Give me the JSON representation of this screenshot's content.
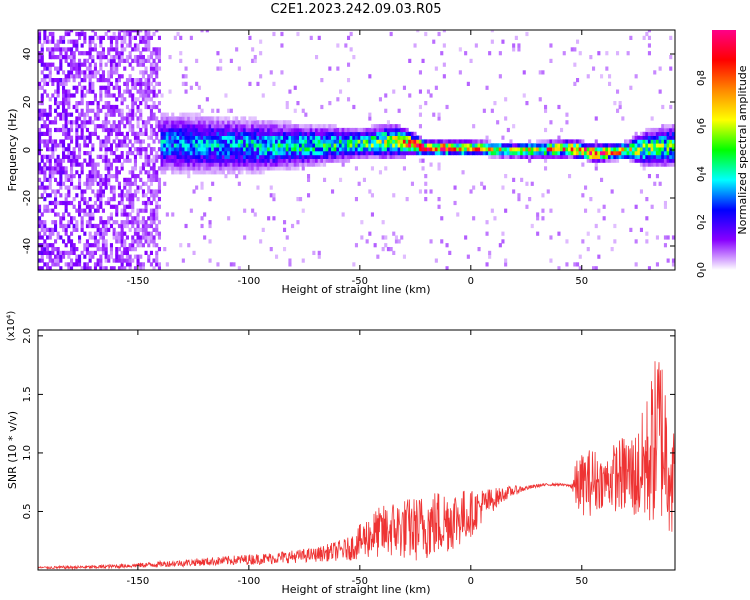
{
  "title": "C2E1.2023.242.09.03.R05",
  "chart_data": [
    {
      "type": "heatmap",
      "xlabel": "Height of straight line (km)",
      "ylabel": "Frequency (Hz)",
      "xlim": [
        -195,
        92
      ],
      "ylim": [
        -50,
        50
      ],
      "xticks": [
        -150,
        -100,
        -50,
        0,
        50
      ],
      "yticks": [
        -40,
        -20,
        0,
        20,
        40
      ],
      "colorbar": {
        "label": "Normalized spectral amplitude",
        "range": [
          0.0,
          1.0
        ],
        "ticks": [
          "0.0",
          "0.2",
          "0.4",
          "0.6",
          "0.8"
        ],
        "colormap": [
          "#ffffff",
          "#8800ff",
          "#0000ff",
          "#00ffff",
          "#00ff00",
          "#ffff00",
          "#ff8800",
          "#ff0000",
          "#ff0088"
        ]
      },
      "band_profile": {
        "x": [
          -195,
          -150,
          -140,
          -100,
          -75,
          -50,
          -35,
          -28,
          -20,
          0,
          20,
          45,
          55,
          70,
          78,
          92
        ],
        "center_hz": [
          0,
          0,
          2,
          1,
          1,
          2,
          3,
          2,
          0,
          0,
          -1,
          0,
          -2,
          -1,
          0,
          1
        ],
        "halfwidth_hz": [
          50,
          45,
          10,
          9,
          7,
          5,
          6,
          4,
          2.5,
          2.5,
          2.5,
          3,
          3,
          3,
          6,
          7
        ],
        "peak_amplitude": [
          0.12,
          0.18,
          0.3,
          0.35,
          0.4,
          0.45,
          0.55,
          0.8,
          0.9,
          0.7,
          0.55,
          0.75,
          0.85,
          0.65,
          0.5,
          0.45
        ]
      }
    },
    {
      "type": "line",
      "xlabel": "Height of straight line (km)",
      "ylabel": "SNR (10 * v/v)",
      "y_multiplier": "(x10⁴)",
      "xlim": [
        -195,
        92
      ],
      "ylim": [
        0,
        2.05
      ],
      "xticks": [
        -150,
        -100,
        -50,
        0,
        50
      ],
      "yticks": [
        "0.5",
        "1.0",
        "1.5",
        "2.0"
      ],
      "color": "#ee3333",
      "series": [
        {
          "x": [
            -195,
            -170,
            -150,
            -130,
            -110,
            -90,
            -70,
            -55,
            -45,
            -35,
            -25,
            -15,
            -5,
            0,
            5,
            10,
            15,
            20,
            25,
            30,
            35,
            40,
            45,
            48,
            55,
            60,
            65,
            70,
            75,
            80,
            85,
            90,
            92
          ],
          "y": [
            0.02,
            0.025,
            0.04,
            0.06,
            0.08,
            0.1,
            0.13,
            0.18,
            0.3,
            0.35,
            0.35,
            0.4,
            0.45,
            0.48,
            0.55,
            0.6,
            0.65,
            0.68,
            0.7,
            0.72,
            0.73,
            0.73,
            0.72,
            0.72,
            0.76,
            0.75,
            0.8,
            0.82,
            0.8,
            0.95,
            1.2,
            0.9,
            0.6
          ],
          "noise": [
            0.01,
            0.015,
            0.02,
            0.03,
            0.04,
            0.05,
            0.06,
            0.1,
            0.2,
            0.25,
            0.28,
            0.3,
            0.25,
            0.2,
            0.15,
            0.1,
            0.06,
            0.04,
            0.02,
            0.015,
            0.01,
            0.01,
            0.01,
            0.25,
            0.3,
            0.2,
            0.3,
            0.35,
            0.4,
            0.6,
            0.8,
            0.6,
            0.5
          ]
        }
      ]
    }
  ]
}
